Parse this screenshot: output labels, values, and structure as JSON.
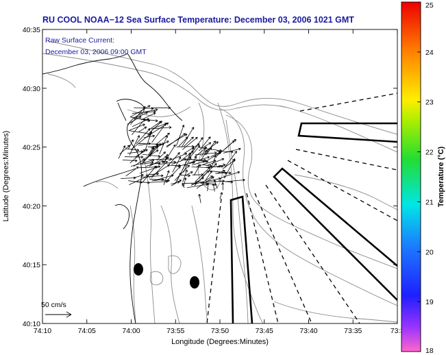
{
  "title": "RU COOL  NOAA−12  Sea Surface Temperature:  December 03, 2006 1021 GMT",
  "info": {
    "line1": "Raw Surface Current:",
    "line2": "December 03, 2006 09:00 GMT"
  },
  "axes": {
    "xlabel": "Longitude (Degrees:Minutes)",
    "ylabel": "Latitude (Degrees:Minutes)",
    "x_ticks": [
      "74:10",
      "74:05",
      "74:00",
      "73:55",
      "73:50",
      "73:45",
      "73:40",
      "73:35",
      "73:3"
    ],
    "y_ticks": [
      "40:35",
      "40:30",
      "40:25",
      "40:20",
      "40:15",
      "40:10"
    ]
  },
  "colorbar": {
    "label": "Temperature (°C)",
    "ticks": [
      "25",
      "24",
      "23",
      "22",
      "21",
      "20",
      "19",
      "18"
    ],
    "range": [
      18,
      25
    ]
  },
  "scale": {
    "label": "50 cm/s"
  },
  "colors": {
    "title": "#1a1aa0",
    "contour": "#8a8a8a",
    "frame": "#000000"
  }
}
